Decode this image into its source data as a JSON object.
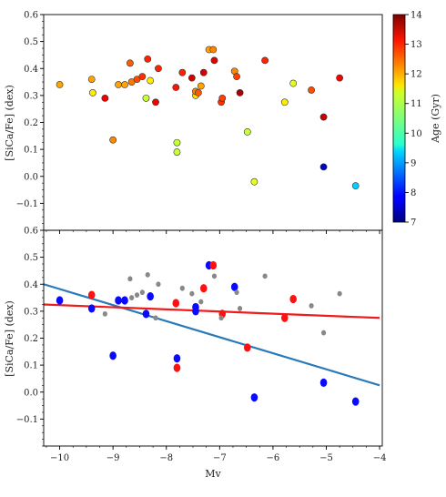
{
  "chart_data": [
    {
      "type": "scatter",
      "panel": "top",
      "title": "",
      "xlabel": "",
      "ylabel": "[SiCa/Fe] (dex)",
      "xlim": [
        -10.3,
        -3.95
      ],
      "ylim": [
        -0.2,
        0.6
      ],
      "yticks": [
        -0.1,
        0.0,
        0.1,
        0.2,
        0.3,
        0.4,
        0.5,
        0.6
      ],
      "ytick_labels": [
        "−0.1",
        "0.0",
        "0.1",
        "0.2",
        "0.3",
        "0.4",
        "0.5",
        "0.6"
      ],
      "grid": false,
      "colorbar": {
        "label": "Age (Gyr)",
        "range": [
          7,
          14
        ],
        "ticks": [
          7,
          8,
          9,
          10,
          11,
          12,
          13,
          14
        ],
        "tick_labels": [
          "7",
          "8",
          "9",
          "10",
          "11",
          "12",
          "13",
          "14"
        ],
        "colormap": "jet"
      },
      "points": [
        {
          "x": -10.0,
          "y": 0.34,
          "age": 12.0
        },
        {
          "x": -9.4,
          "y": 0.36,
          "age": 12.0
        },
        {
          "x": -9.38,
          "y": 0.31,
          "age": 11.5
        },
        {
          "x": -9.15,
          "y": 0.29,
          "age": 13.2
        },
        {
          "x": -9.0,
          "y": 0.135,
          "age": 12.2
        },
        {
          "x": -8.9,
          "y": 0.34,
          "age": 12.0
        },
        {
          "x": -8.78,
          "y": 0.34,
          "age": 12.0
        },
        {
          "x": -8.68,
          "y": 0.42,
          "age": 12.5
        },
        {
          "x": -8.65,
          "y": 0.35,
          "age": 12.3
        },
        {
          "x": -8.55,
          "y": 0.36,
          "age": 12.6
        },
        {
          "x": -8.45,
          "y": 0.37,
          "age": 12.8
        },
        {
          "x": -8.38,
          "y": 0.29,
          "age": 11.0
        },
        {
          "x": -8.35,
          "y": 0.435,
          "age": 12.9
        },
        {
          "x": -8.3,
          "y": 0.355,
          "age": 11.5
        },
        {
          "x": -8.2,
          "y": 0.275,
          "age": 13.2
        },
        {
          "x": -8.15,
          "y": 0.4,
          "age": 12.9
        },
        {
          "x": -7.82,
          "y": 0.33,
          "age": 13.0
        },
        {
          "x": -7.8,
          "y": 0.125,
          "age": 11.0
        },
        {
          "x": -7.8,
          "y": 0.09,
          "age": 11.0
        },
        {
          "x": -7.7,
          "y": 0.385,
          "age": 12.9
        },
        {
          "x": -7.52,
          "y": 0.365,
          "age": 13.4
        },
        {
          "x": -7.45,
          "y": 0.3,
          "age": 11.6
        },
        {
          "x": -7.45,
          "y": 0.315,
          "age": 12.2
        },
        {
          "x": -7.4,
          "y": 0.31,
          "age": 12.5
        },
        {
          "x": -7.35,
          "y": 0.335,
          "age": 12.0
        },
        {
          "x": -7.3,
          "y": 0.385,
          "age": 13.4
        },
        {
          "x": -7.2,
          "y": 0.47,
          "age": 12.0
        },
        {
          "x": -7.12,
          "y": 0.47,
          "age": 12.2
        },
        {
          "x": -7.1,
          "y": 0.43,
          "age": 13.3
        },
        {
          "x": -6.97,
          "y": 0.275,
          "age": 12.8
        },
        {
          "x": -6.95,
          "y": 0.29,
          "age": 12.7
        },
        {
          "x": -6.72,
          "y": 0.39,
          "age": 12.2
        },
        {
          "x": -6.68,
          "y": 0.37,
          "age": 12.7
        },
        {
          "x": -6.62,
          "y": 0.31,
          "age": 13.7
        },
        {
          "x": -6.48,
          "y": 0.165,
          "age": 11.0
        },
        {
          "x": -6.35,
          "y": -0.02,
          "age": 11.2
        },
        {
          "x": -6.15,
          "y": 0.43,
          "age": 12.9
        },
        {
          "x": -5.78,
          "y": 0.275,
          "age": 11.5
        },
        {
          "x": -5.62,
          "y": 0.345,
          "age": 11.2
        },
        {
          "x": -5.28,
          "y": 0.32,
          "age": 12.6
        },
        {
          "x": -5.05,
          "y": 0.22,
          "age": 13.5
        },
        {
          "x": -5.05,
          "y": 0.035,
          "age": 7.5
        },
        {
          "x": -4.75,
          "y": 0.365,
          "age": 13.2
        },
        {
          "x": -4.45,
          "y": -0.035,
          "age": 9.3
        }
      ]
    },
    {
      "type": "scatter",
      "panel": "bottom",
      "title": "",
      "xlabel": "Mv",
      "ylabel": "[SiCa/Fe] (dex)",
      "xlim": [
        -10.3,
        -3.95
      ],
      "ylim": [
        -0.2,
        0.6
      ],
      "xticks": [
        -10,
        -9,
        -8,
        -7,
        -6,
        -5,
        -4
      ],
      "xtick_labels": [
        "−10",
        "−9",
        "−8",
        "−7",
        "−6",
        "−5",
        "−4"
      ],
      "yticks": [
        -0.1,
        0.0,
        0.1,
        0.2,
        0.3,
        0.4,
        0.5,
        0.6
      ],
      "ytick_labels": [
        "−0.1",
        "0.0",
        "0.1",
        "0.2",
        "0.3",
        "0.4",
        "0.5",
        "0.6"
      ],
      "grid": false,
      "colors": {
        "blue": "#0a0aff",
        "red": "#ff1010",
        "gray": "#888888",
        "blue_line": "#2a7ab9",
        "red_line": "#ee1c1c"
      },
      "series": [
        {
          "color": "blue",
          "points": [
            {
              "x": -10.0,
              "y": 0.34
            },
            {
              "x": -9.4,
              "y": 0.31
            },
            {
              "x": -9.0,
              "y": 0.135
            },
            {
              "x": -8.9,
              "y": 0.34
            },
            {
              "x": -8.78,
              "y": 0.34
            },
            {
              "x": -8.38,
              "y": 0.29
            },
            {
              "x": -8.3,
              "y": 0.355
            },
            {
              "x": -7.8,
              "y": 0.125
            },
            {
              "x": -7.45,
              "y": 0.3
            },
            {
              "x": -7.45,
              "y": 0.315
            },
            {
              "x": -7.2,
              "y": 0.47
            },
            {
              "x": -6.72,
              "y": 0.39
            },
            {
              "x": -6.35,
              "y": -0.02
            },
            {
              "x": -5.05,
              "y": 0.035
            },
            {
              "x": -4.45,
              "y": -0.035
            }
          ]
        },
        {
          "color": "red",
          "points": [
            {
              "x": -9.4,
              "y": 0.36
            },
            {
              "x": -7.82,
              "y": 0.33
            },
            {
              "x": -7.8,
              "y": 0.09
            },
            {
              "x": -7.3,
              "y": 0.385
            },
            {
              "x": -7.12,
              "y": 0.47
            },
            {
              "x": -6.95,
              "y": 0.29
            },
            {
              "x": -6.48,
              "y": 0.165
            },
            {
              "x": -5.78,
              "y": 0.275
            },
            {
              "x": -5.62,
              "y": 0.345
            }
          ]
        },
        {
          "color": "gray",
          "points": [
            {
              "x": -9.15,
              "y": 0.29
            },
            {
              "x": -8.68,
              "y": 0.42
            },
            {
              "x": -8.65,
              "y": 0.35
            },
            {
              "x": -8.55,
              "y": 0.36
            },
            {
              "x": -8.45,
              "y": 0.37
            },
            {
              "x": -8.35,
              "y": 0.435
            },
            {
              "x": -8.2,
              "y": 0.275
            },
            {
              "x": -8.15,
              "y": 0.4
            },
            {
              "x": -7.7,
              "y": 0.385
            },
            {
              "x": -7.52,
              "y": 0.365
            },
            {
              "x": -7.35,
              "y": 0.335
            },
            {
              "x": -7.1,
              "y": 0.43
            },
            {
              "x": -6.97,
              "y": 0.275
            },
            {
              "x": -6.68,
              "y": 0.37
            },
            {
              "x": -6.62,
              "y": 0.31
            },
            {
              "x": -6.15,
              "y": 0.43
            },
            {
              "x": -5.28,
              "y": 0.32
            },
            {
              "x": -5.05,
              "y": 0.22
            },
            {
              "x": -4.75,
              "y": 0.365
            }
          ]
        }
      ],
      "fit_lines": [
        {
          "color": "blue_line",
          "x": [
            -10.3,
            -4.0
          ],
          "y": [
            0.4,
            0.025
          ]
        },
        {
          "color": "red_line",
          "x": [
            -10.3,
            -4.0
          ],
          "y": [
            0.325,
            0.275
          ]
        }
      ]
    }
  ]
}
